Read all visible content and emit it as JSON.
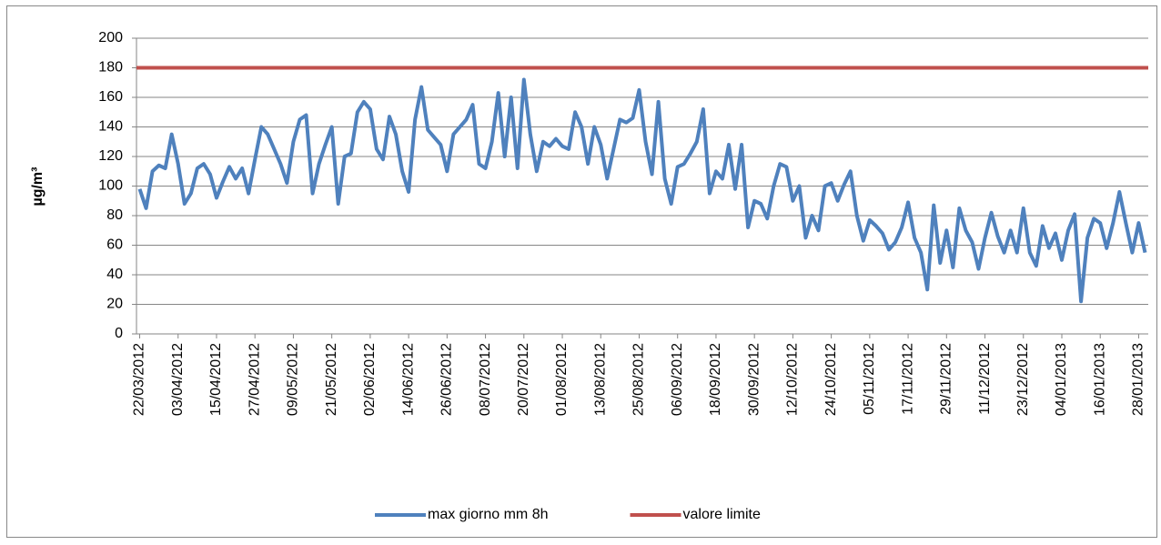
{
  "chart_data": {
    "type": "line",
    "y_label": "µg/m³",
    "categories": [
      "22/03/2012",
      null,
      null,
      null,
      null,
      null,
      "03/04/2012",
      null,
      null,
      null,
      null,
      null,
      "15/04/2012",
      null,
      null,
      null,
      null,
      null,
      "27/04/2012",
      null,
      null,
      null,
      null,
      null,
      "09/05/2012",
      null,
      null,
      null,
      null,
      null,
      "21/05/2012",
      null,
      null,
      null,
      null,
      null,
      "02/06/2012",
      null,
      null,
      null,
      null,
      null,
      "14/06/2012",
      null,
      null,
      null,
      null,
      null,
      "26/06/2012",
      null,
      null,
      null,
      null,
      null,
      "08/07/2012",
      null,
      null,
      null,
      null,
      null,
      "20/07/2012",
      null,
      null,
      null,
      null,
      null,
      "01/08/2012",
      null,
      null,
      null,
      null,
      null,
      "13/08/2012",
      null,
      null,
      null,
      null,
      null,
      "25/08/2012",
      null,
      null,
      null,
      null,
      null,
      "06/09/2012",
      null,
      null,
      null,
      null,
      null,
      "18/09/2012",
      null,
      null,
      null,
      null,
      null,
      "30/09/2012",
      null,
      null,
      null,
      null,
      null,
      "12/10/2012",
      null,
      null,
      null,
      null,
      null,
      "24/10/2012",
      null,
      null,
      null,
      null,
      null,
      "05/11/2012",
      null,
      null,
      null,
      null,
      null,
      "17/11/2012",
      null,
      null,
      null,
      null,
      null,
      "29/11/2012",
      null,
      null,
      null,
      null,
      null,
      "11/12/2012",
      null,
      null,
      null,
      null,
      null,
      "23/12/2012",
      null,
      null,
      null,
      null,
      null,
      "04/01/2013",
      null,
      null,
      null,
      null,
      null,
      "16/01/2013",
      null,
      null,
      null,
      null,
      null,
      "28/01/2013",
      null
    ],
    "series": [
      {
        "name": "max giorno mm 8h",
        "color": "#4f81bd",
        "values": [
          98,
          85,
          110,
          114,
          112,
          135,
          115,
          88,
          95,
          112,
          115,
          108,
          92,
          103,
          113,
          105,
          112,
          95,
          118,
          140,
          135,
          125,
          115,
          102,
          130,
          145,
          148,
          95,
          115,
          128,
          140,
          88,
          120,
          122,
          150,
          157,
          152,
          125,
          118,
          147,
          135,
          110,
          96,
          145,
          167,
          138,
          133,
          128,
          110,
          135,
          140,
          145,
          155,
          115,
          112,
          130,
          163,
          120,
          160,
          112,
          172,
          135,
          110,
          130,
          127,
          132,
          127,
          125,
          150,
          140,
          115,
          140,
          128,
          105,
          125,
          145,
          143,
          146,
          165,
          130,
          108,
          157,
          105,
          88,
          113,
          115,
          122,
          130,
          152,
          95,
          110,
          105,
          128,
          98,
          128,
          72,
          90,
          88,
          78,
          100,
          115,
          113,
          90,
          100,
          65,
          80,
          70,
          100,
          102,
          90,
          101,
          110,
          80,
          63,
          77,
          73,
          68,
          57,
          62,
          72,
          89,
          65,
          55,
          30,
          87,
          48,
          70,
          45,
          85,
          70,
          62,
          44,
          65,
          82,
          66,
          55,
          70,
          55,
          85,
          55,
          46,
          73,
          58,
          68,
          50,
          70,
          81,
          22,
          65,
          78,
          75,
          58,
          75,
          96,
          75,
          55,
          75,
          55
        ]
      }
    ],
    "reference_line": {
      "name": "valore limite",
      "value": 180,
      "color": "#c0504d"
    },
    "ylim": [
      0,
      200
    ],
    "yticks": [
      0,
      20,
      40,
      60,
      80,
      100,
      120,
      140,
      160,
      180,
      200
    ],
    "grid": true
  }
}
